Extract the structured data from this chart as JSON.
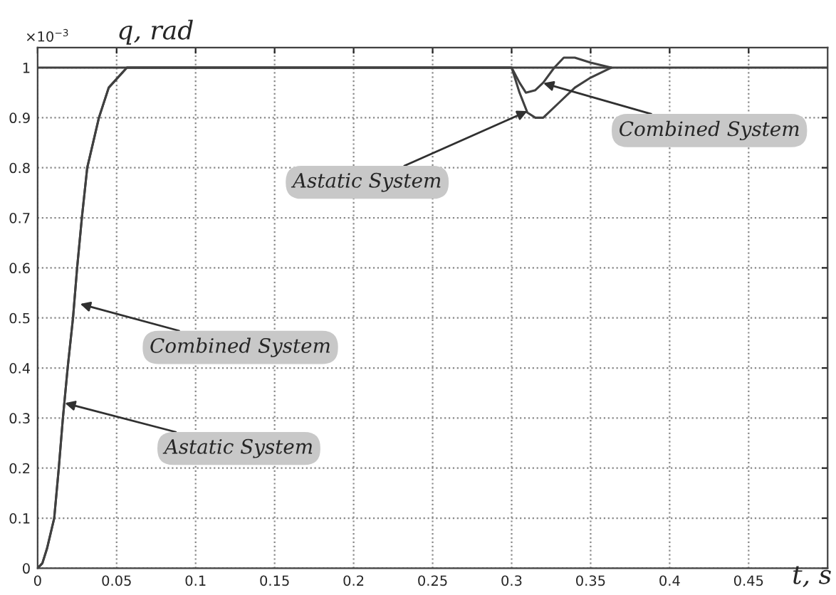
{
  "chart_data": {
    "type": "line",
    "xlabel": "t, s",
    "ylabel": "q, rad",
    "series": [
      {
        "color": "#404040",
        "x": [
          0,
          0.003,
          0.006,
          0.0105,
          0.0134,
          0.016,
          0.019,
          0.0224,
          0.025,
          0.028,
          0.0314,
          0.0388,
          0.045,
          0.0565,
          0.08,
          0.3,
          0.305,
          0.31,
          0.315,
          0.32,
          0.33,
          0.34,
          0.35,
          0.363
        ],
        "values": [
          0,
          0.01,
          0.04,
          0.1,
          0.2,
          0.3,
          0.4,
          0.5,
          0.6,
          0.7,
          0.8,
          0.9,
          0.96,
          1.0,
          1.0,
          1.0,
          0.95,
          0.91,
          0.9,
          0.9,
          0.93,
          0.96,
          0.98,
          1.0
        ]
      },
      {
        "color": "#404040",
        "x": [
          0,
          0.003,
          0.006,
          0.0105,
          0.0134,
          0.016,
          0.019,
          0.0224,
          0.025,
          0.028,
          0.0314,
          0.0388,
          0.045,
          0.0565,
          0.08,
          0.3,
          0.305,
          0.309,
          0.315,
          0.32,
          0.327,
          0.333,
          0.34,
          0.35,
          0.363
        ],
        "values": [
          0,
          0.01,
          0.04,
          0.1,
          0.2,
          0.3,
          0.4,
          0.5,
          0.6,
          0.7,
          0.8,
          0.9,
          0.96,
          1.0,
          1.0,
          1.0,
          0.97,
          0.95,
          0.955,
          0.97,
          1.0,
          1.02,
          1.02,
          1.01,
          1.0
        ]
      }
    ],
    "xlim": [
      0,
      0.5
    ],
    "ylim": [
      0,
      1.04
    ],
    "xticks": [
      0,
      0.05,
      0.1,
      0.15,
      0.2,
      0.25,
      0.3,
      0.35,
      0.4,
      0.45
    ],
    "yticks": [
      0,
      0.1,
      0.2,
      0.3,
      0.4,
      0.5,
      0.6,
      0.7,
      0.8,
      0.9,
      1
    ],
    "ref_lines": [
      {
        "axis": "y",
        "value": 1,
        "color": "#404040"
      }
    ],
    "annotations": [
      "×10$^{−3}$",
      {
        "text": "Combined System",
        "x": 0.0269,
        "y": 0.528
      },
      {
        "text": "Astatic System",
        "x": 0.0172,
        "y": 0.33
      },
      {
        "text": "Astatic System",
        "x": 0.31,
        "y": 0.913
      },
      {
        "text": "Combined System",
        "x": 0.32,
        "y": 0.969
      }
    ],
    "grid": true,
    "line_style": "solid",
    "marker": "none",
    "legend": false
  }
}
